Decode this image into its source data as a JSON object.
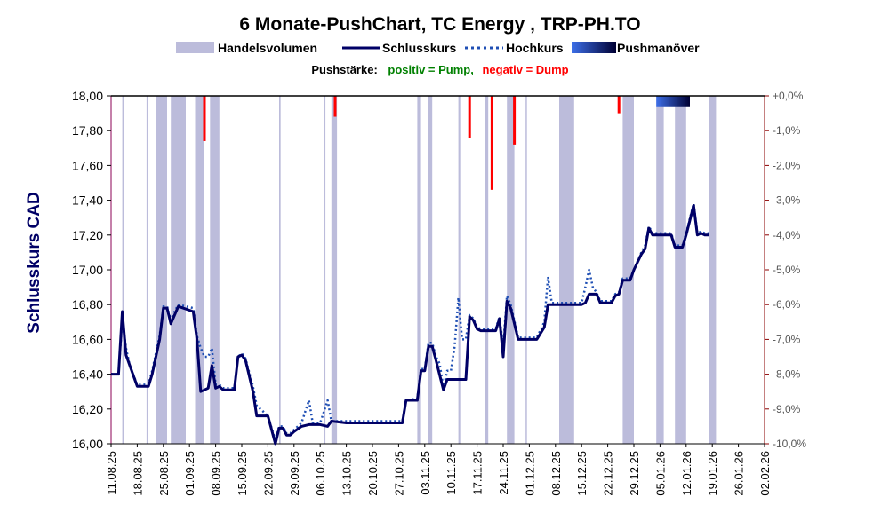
{
  "chart_data": {
    "type": "line",
    "title": "6 Monate-PushChart, TC Energy , TRP-PH.TO",
    "legend": {
      "volume": "Handelsvolumen",
      "close": "Schlusskurs",
      "high": "Hochkurs",
      "push": "Pushmanöver"
    },
    "subtitle": {
      "prefix": "Pushstärke:",
      "positive": "positiv = Pump,",
      "negative": "negativ = Dump"
    },
    "ylabel": "Schlusskurs CAD",
    "ylim": [
      16.0,
      18.0
    ],
    "y_ticks": [
      "16,00",
      "16,20",
      "16,40",
      "16,60",
      "16,80",
      "17,00",
      "17,20",
      "17,40",
      "17,60",
      "17,80",
      "18,00"
    ],
    "y2lim": [
      -10.0,
      0.0
    ],
    "y2_ticks": [
      "+0,0%",
      "-1,0%",
      "-2,0%",
      "-3,0%",
      "-4,0%",
      "-5,0%",
      "-6,0%",
      "-7,0%",
      "-8,0%",
      "-9,0%",
      "-10,0%"
    ],
    "x_ticks": [
      "11.08.25",
      "18.08.25",
      "25.08.25",
      "01.09.25",
      "08.09.25",
      "15.09.25",
      "22.09.25",
      "29.09.25",
      "06.10.25",
      "13.10.25",
      "20.10.25",
      "27.10.25",
      "03.11.25",
      "10.11.25",
      "17.11.25",
      "24.11.25",
      "01.12.25",
      "08.12.25",
      "15.12.25",
      "22.12.25",
      "29.12.25",
      "05.01.26",
      "12.01.26",
      "19.01.26",
      "26.01.26",
      "02.02.26"
    ],
    "x_range_days": [
      0,
      175
    ],
    "series": [
      {
        "name": "Schlusskurs",
        "color": "#000066",
        "points": [
          [
            0,
            16.4
          ],
          [
            2,
            16.4
          ],
          [
            3,
            16.76
          ],
          [
            4,
            16.51
          ],
          [
            5,
            16.45
          ],
          [
            7,
            16.33
          ],
          [
            10,
            16.33
          ],
          [
            11,
            16.4
          ],
          [
            13,
            16.6
          ],
          [
            14,
            16.78
          ],
          [
            15,
            16.78
          ],
          [
            16,
            16.69
          ],
          [
            17,
            16.74
          ],
          [
            18,
            16.79
          ],
          [
            22,
            16.76
          ],
          [
            23,
            16.6
          ],
          [
            24,
            16.3
          ],
          [
            26,
            16.32
          ],
          [
            27,
            16.45
          ],
          [
            28,
            16.32
          ],
          [
            29,
            16.33
          ],
          [
            30,
            16.31
          ],
          [
            33,
            16.31
          ],
          [
            34,
            16.5
          ],
          [
            35,
            16.51
          ],
          [
            36,
            16.48
          ],
          [
            38,
            16.3
          ],
          [
            39,
            16.16
          ],
          [
            42,
            16.16
          ],
          [
            44,
            16.0
          ],
          [
            45,
            16.09
          ],
          [
            46,
            16.09
          ],
          [
            47,
            16.05
          ],
          [
            48,
            16.05
          ],
          [
            49,
            16.07
          ],
          [
            51,
            16.1
          ],
          [
            53,
            16.11
          ],
          [
            56,
            16.11
          ],
          [
            58,
            16.1
          ],
          [
            59,
            16.13
          ],
          [
            63,
            16.12
          ],
          [
            64,
            16.12
          ],
          [
            66,
            16.12
          ],
          [
            70,
            16.12
          ],
          [
            74,
            16.12
          ],
          [
            77,
            16.12
          ],
          [
            78,
            16.12
          ],
          [
            79,
            16.25
          ],
          [
            82,
            16.25
          ],
          [
            83,
            16.42
          ],
          [
            84,
            16.42
          ],
          [
            85,
            16.56
          ],
          [
            86,
            16.56
          ],
          [
            87,
            16.48
          ],
          [
            89,
            16.31
          ],
          [
            90,
            16.37
          ],
          [
            95,
            16.37
          ],
          [
            96,
            16.73
          ],
          [
            97,
            16.71
          ],
          [
            98,
            16.66
          ],
          [
            99,
            16.65
          ],
          [
            103,
            16.65
          ],
          [
            104,
            16.72
          ],
          [
            105,
            16.5
          ],
          [
            106,
            16.82
          ],
          [
            107,
            16.78
          ],
          [
            109,
            16.6
          ],
          [
            114,
            16.6
          ],
          [
            116,
            16.67
          ],
          [
            117,
            16.8
          ],
          [
            118,
            16.8
          ],
          [
            126,
            16.8
          ],
          [
            127,
            16.81
          ],
          [
            128,
            16.86
          ],
          [
            130,
            16.86
          ],
          [
            131,
            16.81
          ],
          [
            134,
            16.81
          ],
          [
            135,
            16.85
          ],
          [
            136,
            16.86
          ],
          [
            137,
            16.94
          ],
          [
            139,
            16.94
          ],
          [
            140,
            17.0
          ],
          [
            142,
            17.09
          ],
          [
            143,
            17.12
          ],
          [
            144,
            17.24
          ],
          [
            145,
            17.2
          ],
          [
            150,
            17.2
          ],
          [
            151,
            17.13
          ],
          [
            153,
            17.13
          ],
          [
            154,
            17.2
          ],
          [
            156,
            17.37
          ],
          [
            157,
            17.2
          ],
          [
            158,
            17.21
          ],
          [
            159,
            17.2
          ],
          [
            160,
            17.2
          ]
        ]
      },
      {
        "name": "Hochkurs",
        "color": "#1f4fb4",
        "points": [
          [
            0,
            16.4
          ],
          [
            2,
            16.4
          ],
          [
            3,
            16.72
          ],
          [
            4,
            16.55
          ],
          [
            5,
            16.45
          ],
          [
            7,
            16.34
          ],
          [
            10,
            16.34
          ],
          [
            11,
            16.42
          ],
          [
            13,
            16.62
          ],
          [
            14,
            16.79
          ],
          [
            15,
            16.79
          ],
          [
            16,
            16.71
          ],
          [
            17,
            16.76
          ],
          [
            18,
            16.8
          ],
          [
            22,
            16.78
          ],
          [
            23,
            16.62
          ],
          [
            24,
            16.55
          ],
          [
            25,
            16.5
          ],
          [
            26,
            16.5
          ],
          [
            27,
            16.55
          ],
          [
            28,
            16.34
          ],
          [
            29,
            16.34
          ],
          [
            30,
            16.32
          ],
          [
            33,
            16.32
          ],
          [
            34,
            16.5
          ],
          [
            35,
            16.52
          ],
          [
            36,
            16.49
          ],
          [
            38,
            16.33
          ],
          [
            39,
            16.22
          ],
          [
            42,
            16.16
          ],
          [
            44,
            16.02
          ],
          [
            45,
            16.1
          ],
          [
            46,
            16.1
          ],
          [
            47,
            16.06
          ],
          [
            48,
            16.06
          ],
          [
            49,
            16.08
          ],
          [
            51,
            16.12
          ],
          [
            53,
            16.25
          ],
          [
            54,
            16.12
          ],
          [
            56,
            16.12
          ],
          [
            58,
            16.25
          ],
          [
            59,
            16.13
          ],
          [
            63,
            16.13
          ],
          [
            64,
            16.13
          ],
          [
            66,
            16.13
          ],
          [
            70,
            16.13
          ],
          [
            74,
            16.13
          ],
          [
            77,
            16.13
          ],
          [
            78,
            16.13
          ],
          [
            79,
            16.25
          ],
          [
            82,
            16.26
          ],
          [
            83,
            16.43
          ],
          [
            84,
            16.43
          ],
          [
            85,
            16.58
          ],
          [
            86,
            16.58
          ],
          [
            87,
            16.5
          ],
          [
            88,
            16.46
          ],
          [
            89,
            16.32
          ],
          [
            90,
            16.42
          ],
          [
            91,
            16.42
          ],
          [
            92,
            16.56
          ],
          [
            93,
            16.84
          ],
          [
            94,
            16.6
          ],
          [
            95,
            16.6
          ],
          [
            96,
            16.74
          ],
          [
            97,
            16.72
          ],
          [
            98,
            16.67
          ],
          [
            99,
            16.66
          ],
          [
            103,
            16.66
          ],
          [
            104,
            16.73
          ],
          [
            105,
            16.56
          ],
          [
            106,
            16.85
          ],
          [
            107,
            16.8
          ],
          [
            109,
            16.61
          ],
          [
            114,
            16.61
          ],
          [
            116,
            16.7
          ],
          [
            117,
            16.96
          ],
          [
            118,
            16.81
          ],
          [
            126,
            16.81
          ],
          [
            127,
            16.9
          ],
          [
            128,
            17.0
          ],
          [
            129,
            16.9
          ],
          [
            130,
            16.87
          ],
          [
            131,
            16.82
          ],
          [
            134,
            16.82
          ],
          [
            135,
            16.86
          ],
          [
            136,
            16.87
          ],
          [
            137,
            16.95
          ],
          [
            139,
            16.95
          ],
          [
            140,
            17.0
          ],
          [
            142,
            17.1
          ],
          [
            143,
            17.14
          ],
          [
            144,
            17.25
          ],
          [
            145,
            17.21
          ],
          [
            150,
            17.21
          ],
          [
            151,
            17.14
          ],
          [
            153,
            17.14
          ],
          [
            154,
            17.21
          ],
          [
            156,
            17.38
          ],
          [
            157,
            17.21
          ],
          [
            158,
            17.22
          ],
          [
            159,
            17.21
          ],
          [
            160,
            17.21
          ]
        ]
      }
    ],
    "volume_bands": [
      [
        3,
        3.2
      ],
      [
        9.5,
        10
      ],
      [
        12,
        15
      ],
      [
        16,
        20
      ],
      [
        22.5,
        25
      ],
      [
        26.5,
        29
      ],
      [
        45,
        45.4
      ],
      [
        57,
        57.4
      ],
      [
        59,
        60.5
      ],
      [
        82,
        83
      ],
      [
        85,
        86
      ],
      [
        93,
        93.5
      ],
      [
        100,
        101
      ],
      [
        106,
        108
      ],
      [
        111,
        111.3
      ],
      [
        120,
        124
      ],
      [
        137,
        140
      ],
      [
        146,
        148
      ],
      [
        151,
        154
      ],
      [
        160,
        162
      ]
    ],
    "push_dumps": [
      [
        25,
        -1.3
      ],
      [
        60,
        -0.6
      ],
      [
        96,
        -1.2
      ],
      [
        102,
        -2.7
      ],
      [
        108,
        -1.4
      ],
      [
        136,
        -0.5
      ]
    ],
    "push_pump": {
      "start": 146,
      "end": 155,
      "value": -0.3
    }
  },
  "colors": {
    "close": "#000066",
    "high": "#1f4fb4",
    "volume": "#bcbcdb",
    "dump": "#ff0000",
    "pump_start": "#3d6fe8",
    "pump_end": "#000033",
    "left_axis": "#000066",
    "right_axis": "#8b0000",
    "positive_text": "#008000",
    "negative_text": "#ff0000"
  }
}
